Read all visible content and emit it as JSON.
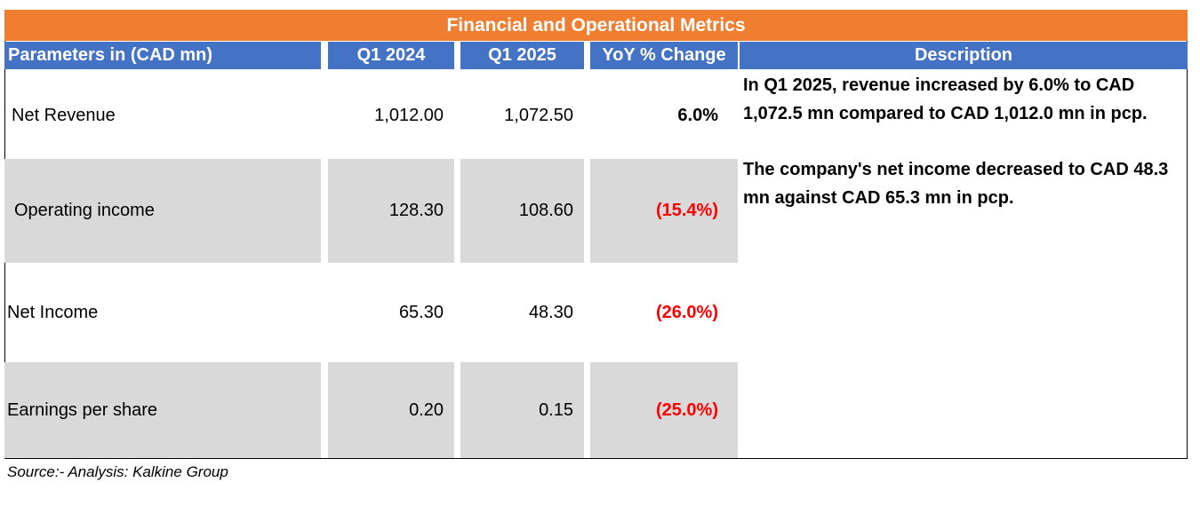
{
  "title": "Financial and Operational Metrics",
  "columns": [
    "Parameters in (CAD mn)",
    "Q1 2024",
    "Q1 2025",
    "YoY % Change",
    "Description"
  ],
  "rows": [
    {
      "label": "Net Revenue",
      "q1_2024": "1,012.00",
      "q1_2025": "1,072.50",
      "yoy": "6.0%"
    },
    {
      "label": "Operating income",
      "q1_2024": "128.30",
      "q1_2025": "108.60",
      "yoy": "(15.4%)"
    },
    {
      "label": "Net Income",
      "q1_2024": "65.30",
      "q1_2025": "48.30",
      "yoy": "(26.0%)"
    },
    {
      "label": "Earnings per share",
      "q1_2024": "0.20",
      "q1_2025": "0.15",
      "yoy": "(25.0%)"
    }
  ],
  "descriptions": [
    "In Q1 2025, revenue increased by  6.0% to CAD 1,072.5 mn compared to CAD 1,012.0 mn in pcp.",
    "The company's net income decreased  to CAD 48.3 mn against CAD 65.3 mn in pcp."
  ],
  "source": "Source:- Analysis: Kalkine Group",
  "colors": {
    "title_bg": "#F07E30",
    "header_bg": "#4472C4",
    "row_shade": "#D9D9D9",
    "negative": "#FF0000"
  }
}
